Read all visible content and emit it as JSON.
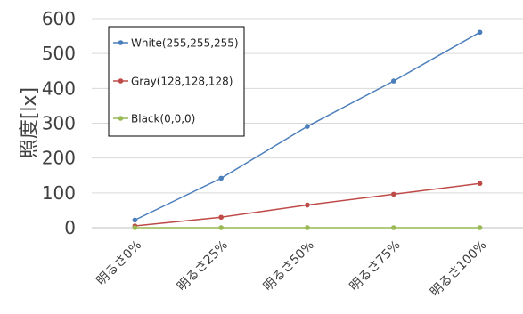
{
  "chart_data": {
    "type": "line",
    "title": "",
    "xlabel": "",
    "ylabel": "照度[lx]",
    "categories": [
      "明るさ0%",
      "明るさ25%",
      "明るさ50%",
      "明るさ75%",
      "明るさ100%"
    ],
    "ylim": [
      0,
      600
    ],
    "yticks": [
      0,
      100,
      200,
      300,
      400,
      500,
      600
    ],
    "grid": true,
    "legend_position": "top-left",
    "series": [
      {
        "name": "White(255,255,255)",
        "color": "#4a7ebb",
        "values": [
          22,
          142,
          291,
          421,
          561
        ]
      },
      {
        "name": "Gray(128,128,128)",
        "color": "#be4b48",
        "values": [
          5,
          30,
          65,
          96,
          127
        ]
      },
      {
        "name": "Black(0,0,0)",
        "color": "#98b954",
        "values": [
          0,
          0,
          0,
          0,
          0
        ]
      }
    ]
  }
}
